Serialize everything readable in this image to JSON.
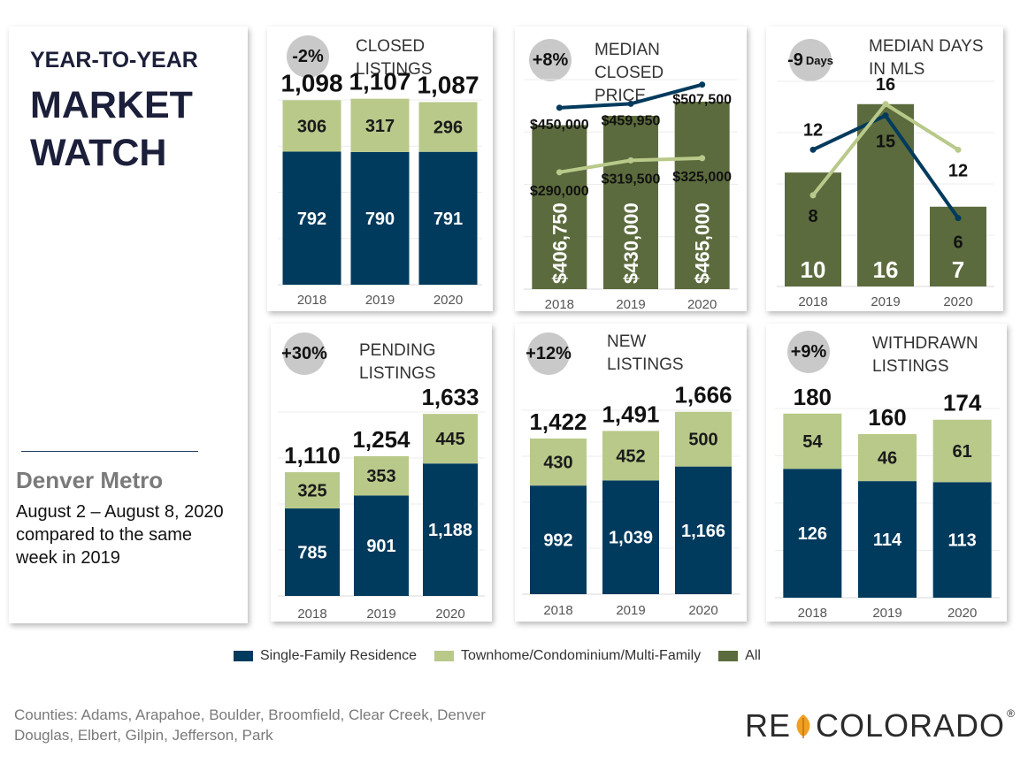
{
  "colors": {
    "sfr": "#003a5d",
    "townhome": "#b8c98a",
    "all": "#5c6b3d",
    "badge": "#c9c9c9"
  },
  "title": {
    "line1": "YEAR-TO-YEAR",
    "line2": "MARKET",
    "line3": "WATCH"
  },
  "region": "Denver Metro",
  "date_lines": [
    "August 2 – August 8, 2020",
    "compared to the same",
    "week in 2019"
  ],
  "legend": [
    {
      "label": "Single-Family Residence",
      "color": "#003a5d"
    },
    {
      "label": "Townhome/Condominium/Multi-Family",
      "color": "#b8c98a"
    },
    {
      "label": "All",
      "color": "#5c6b3d"
    }
  ],
  "footer": {
    "counties_line1": "Counties:  Adams, Arapahoe, Boulder, Broomfield, Clear Creek, Denver",
    "counties_line2": "Douglas, Elbert, Gilpin, Jefferson, Park",
    "logo_left": "RE",
    "logo_right": "COLORADO",
    "logo_mark": "®"
  },
  "chart_data": [
    {
      "id": "closed",
      "type": "bar",
      "stacked": true,
      "badge": "-2%",
      "title": [
        "CLOSED",
        "LISTINGS"
      ],
      "categories": [
        "2018",
        "2019",
        "2020"
      ],
      "series": [
        {
          "name": "Single-Family Residence",
          "values": [
            792,
            790,
            791
          ]
        },
        {
          "name": "Townhome/Condominium/Multi-Family",
          "values": [
            306,
            317,
            296
          ]
        }
      ],
      "totals": [
        "1,098",
        "1,107",
        "1,087"
      ],
      "ylim": [
        0,
        1100
      ]
    },
    {
      "id": "price",
      "type": "bar+line",
      "badge": "+8%",
      "title": [
        "MEDIAN CLOSED",
        "PRICE"
      ],
      "categories": [
        "2018",
        "2019",
        "2020"
      ],
      "bars": {
        "name": "All",
        "values": [
          406750,
          430000,
          465000
        ],
        "labels": [
          "$406,750",
          "$430,000",
          "$465,000"
        ]
      },
      "lines": [
        {
          "name": "Single-Family Residence",
          "values": [
            450000,
            459950,
            507500
          ],
          "labels": [
            "$450,000",
            "$459,950",
            "$507,500"
          ]
        },
        {
          "name": "Townhome/Condominium/Multi-Family",
          "values": [
            290000,
            319500,
            325000
          ],
          "labels": [
            "$290,000",
            "$319,500",
            "$325,000"
          ]
        }
      ],
      "ylim": [
        0,
        520000
      ]
    },
    {
      "id": "days",
      "type": "bar+line",
      "badge": "-9",
      "badge_unit": "Days",
      "title": [
        "MEDIAN DAYS",
        "IN MLS"
      ],
      "categories": [
        "2018",
        "2019",
        "2020"
      ],
      "bars": {
        "name": "All",
        "values": [
          10,
          16,
          7
        ],
        "labels": [
          "10",
          "16",
          "7"
        ]
      },
      "lines": [
        {
          "name": "Single-Family Residence",
          "values": [
            12,
            15,
            6
          ],
          "labels": [
            "12",
            "15",
            "6"
          ]
        },
        {
          "name": "Townhome/Condominium/Multi-Family",
          "values": [
            8,
            16,
            12
          ],
          "labels": [
            "8",
            "16",
            "12"
          ]
        }
      ],
      "ylim": [
        0,
        18
      ]
    },
    {
      "id": "pending",
      "type": "bar",
      "stacked": true,
      "badge": "+30%",
      "title": [
        "PENDING",
        "LISTINGS"
      ],
      "categories": [
        "2018",
        "2019",
        "2020"
      ],
      "series": [
        {
          "name": "Single-Family Residence",
          "values": [
            785,
            901,
            1188
          ],
          "labels": [
            "785",
            "901",
            "1,188"
          ]
        },
        {
          "name": "Townhome/Condominium/Multi-Family",
          "values": [
            325,
            353,
            445
          ]
        }
      ],
      "totals": [
        "1,110",
        "1,254",
        "1,633"
      ],
      "ylim": [
        0,
        1650
      ]
    },
    {
      "id": "new",
      "type": "bar",
      "stacked": true,
      "badge": "+12%",
      "title": [
        "NEW",
        "LISTINGS"
      ],
      "categories": [
        "2018",
        "2019",
        "2020"
      ],
      "series": [
        {
          "name": "Single-Family Residence",
          "values": [
            992,
            1039,
            1166
          ],
          "labels": [
            "992",
            "1,039",
            "1,166"
          ]
        },
        {
          "name": "Townhome/Condominium/Multi-Family",
          "values": [
            430,
            452,
            500
          ]
        }
      ],
      "totals": [
        "1,422",
        "1,491",
        "1,666"
      ],
      "ylim": [
        0,
        1680
      ]
    },
    {
      "id": "withdrawn",
      "type": "bar",
      "stacked": true,
      "badge": "+9%",
      "title": [
        "WITHDRAWN",
        "LISTINGS"
      ],
      "categories": [
        "2018",
        "2019",
        "2020"
      ],
      "series": [
        {
          "name": "Single-Family Residence",
          "values": [
            126,
            114,
            113
          ]
        },
        {
          "name": "Townhome/Condominium/Multi-Family",
          "values": [
            54,
            46,
            61
          ]
        }
      ],
      "totals": [
        "180",
        "160",
        "174"
      ],
      "ylim": [
        0,
        185
      ]
    }
  ]
}
